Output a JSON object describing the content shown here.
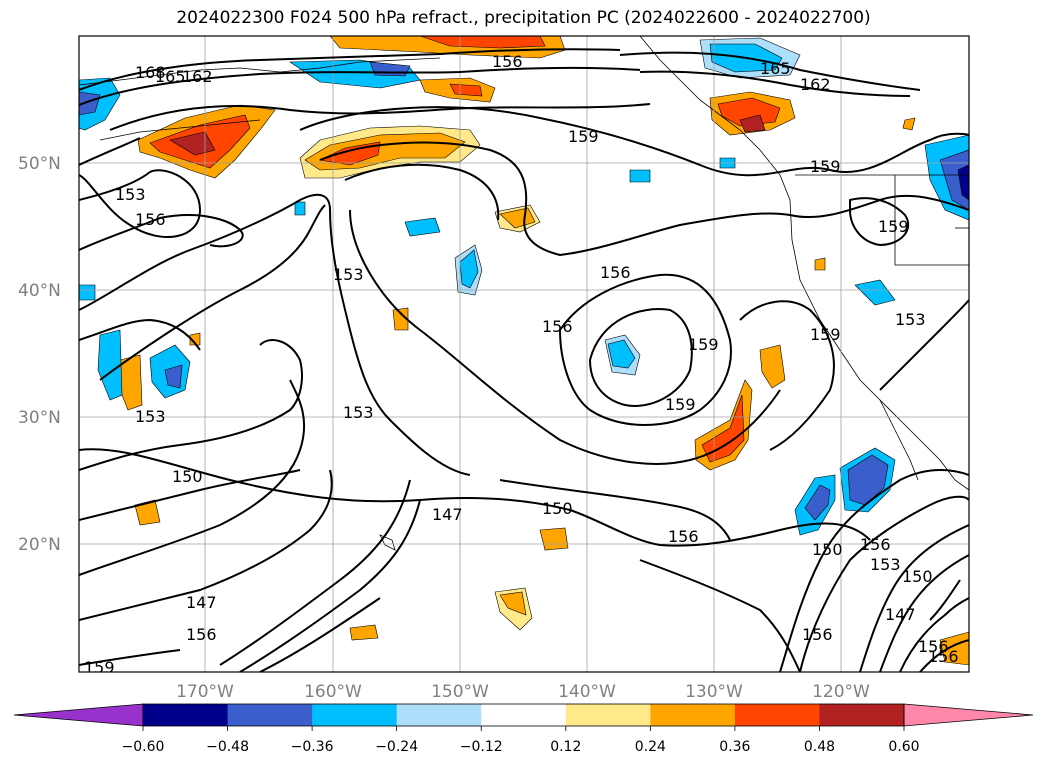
{
  "title": "2024022300 F024 500 hPa refract., precipitation PC (2024022600 - 2024022700)",
  "lat_labels": [
    "50°N",
    "40°N",
    "30°N",
    "20°N"
  ],
  "lon_labels": [
    "170°W",
    "160°W",
    "150°W",
    "140°W",
    "130°W",
    "120°W"
  ],
  "contour_labels": [
    "168",
    "165",
    "162",
    "156",
    "159",
    "165",
    "162",
    "153",
    "156",
    "159",
    "159",
    "153",
    "156",
    "156",
    "159",
    "159",
    "159",
    "153",
    "153",
    "153",
    "150",
    "150",
    "147",
    "156",
    "150",
    "156",
    "153",
    "150",
    "147",
    "156",
    "147",
    "156",
    "159",
    "156",
    "156"
  ],
  "colorbar": {
    "ticks": [
      "−0.60",
      "−0.48",
      "−0.36",
      "−0.24",
      "−0.12",
      "0.12",
      "0.24",
      "0.36",
      "0.48",
      "0.60"
    ],
    "colors": [
      "#9932CC",
      "#00008B",
      "#3A5FCD",
      "#00BFFF",
      "#ADDFFA",
      "#FFFFFF",
      "#FFE98A",
      "#FFA500",
      "#FF4500",
      "#B22222",
      "#FF88AA"
    ]
  }
}
